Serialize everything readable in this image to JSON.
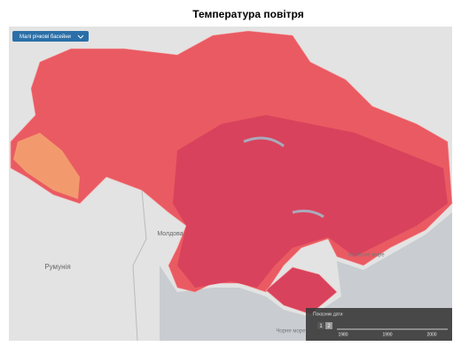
{
  "header": {
    "title": "Температура  повітря"
  },
  "controls": {
    "layer_select": "Малі річкові басейни"
  },
  "map_labels": {
    "moldova": "Молдова",
    "romania": "Румунія",
    "azov_sea": "Азовське море",
    "black_sea": "Чорне море"
  },
  "timeline": {
    "label": "Показник дати",
    "buttons": [
      "1",
      "2"
    ],
    "ticks": [
      "1980",
      "1990",
      "2000"
    ]
  }
}
